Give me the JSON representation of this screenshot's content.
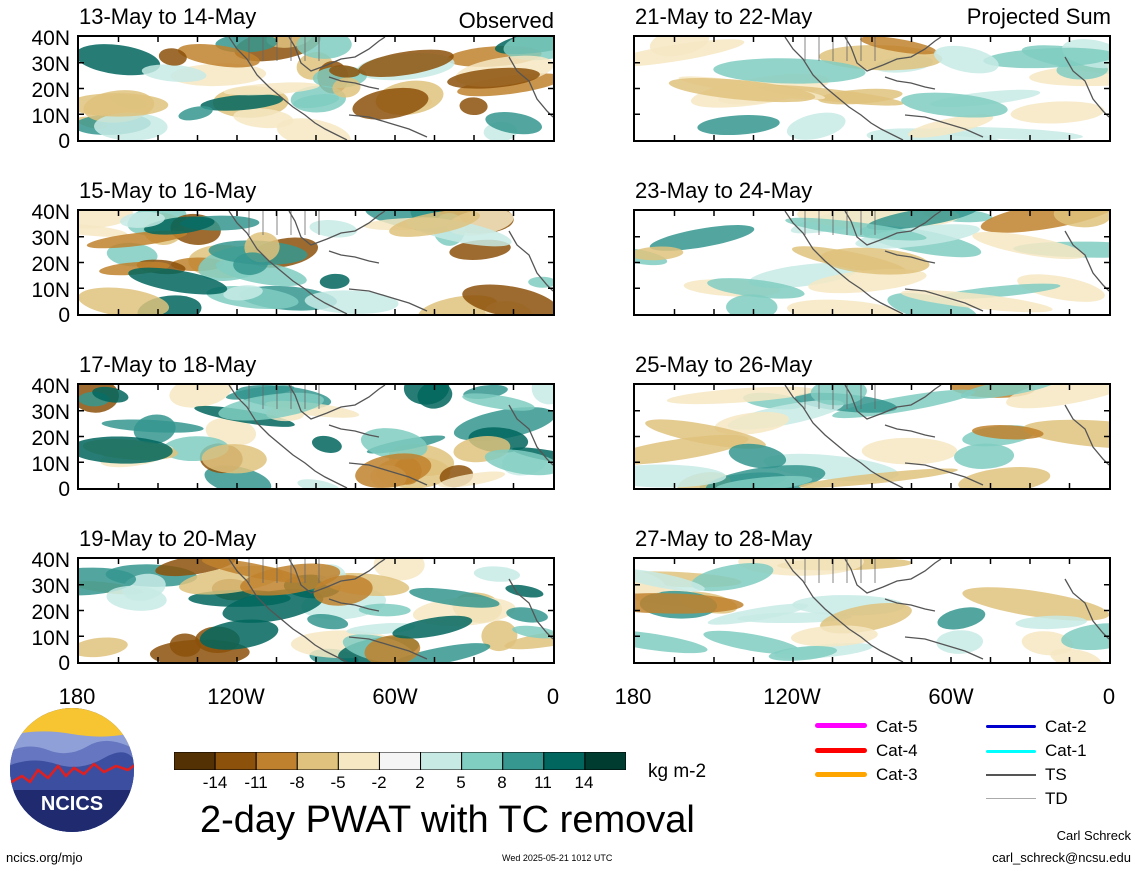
{
  "figure": {
    "title": "2-day PWAT with TC removal",
    "units": "kg m-2",
    "left_tag": "Observed",
    "right_tag": "Projected Sum",
    "y_ticks": [
      "40N",
      "30N",
      "20N",
      "10N",
      "0"
    ],
    "x_ticks": [
      "180",
      "120W",
      "60W",
      "0"
    ]
  },
  "chart_data": {
    "type": "heatmap",
    "title": "2-day PWAT with TC removal",
    "units": "kg m-2",
    "lon_range": [
      -180,
      0
    ],
    "lat_range": [
      0,
      40
    ],
    "colorbar": {
      "ticks": [
        "-14",
        "-11",
        "-8",
        "-5",
        "-2",
        "2",
        "5",
        "8",
        "11",
        "14"
      ],
      "colors": [
        "#543005",
        "#8c510a",
        "#bf812d",
        "#dfc27d",
        "#f6e8c3",
        "#f5f5f5",
        "#c7eae5",
        "#80cdc1",
        "#35978f",
        "#01665e",
        "#003c30"
      ]
    },
    "panels": [
      {
        "label": "13-May to 14-May",
        "group": "Observed"
      },
      {
        "label": "15-May to 16-May",
        "group": "Observed"
      },
      {
        "label": "17-May to 18-May",
        "group": "Observed"
      },
      {
        "label": "19-May to 20-May",
        "group": "Observed"
      },
      {
        "label": "21-May to 22-May",
        "group": "Projected Sum"
      },
      {
        "label": "23-May to 24-May",
        "group": "Projected Sum"
      },
      {
        "label": "25-May to 26-May",
        "group": "Projected Sum"
      },
      {
        "label": "27-May to 28-May",
        "group": "Projected Sum"
      }
    ]
  },
  "tc_legend": {
    "items": [
      {
        "label": "Cat-5",
        "color": "#ff00ff"
      },
      {
        "label": "Cat-4",
        "color": "#ff0000"
      },
      {
        "label": "Cat-3",
        "color": "#ffa500"
      },
      {
        "label": "Cat-2",
        "color": "#0000cc"
      },
      {
        "label": "Cat-1",
        "color": "#00ffff"
      },
      {
        "label": "TS",
        "color": "#555555"
      },
      {
        "label": "TD",
        "color": "#aaaaaa"
      }
    ]
  },
  "logo": {
    "text": "NCICS"
  },
  "footer": {
    "website": "ncics.org/mjo",
    "timestamp": "Wed 2025-05-21 1012 UTC",
    "author": "Carl Schreck",
    "email": "carl_schreck@ncsu.edu"
  }
}
